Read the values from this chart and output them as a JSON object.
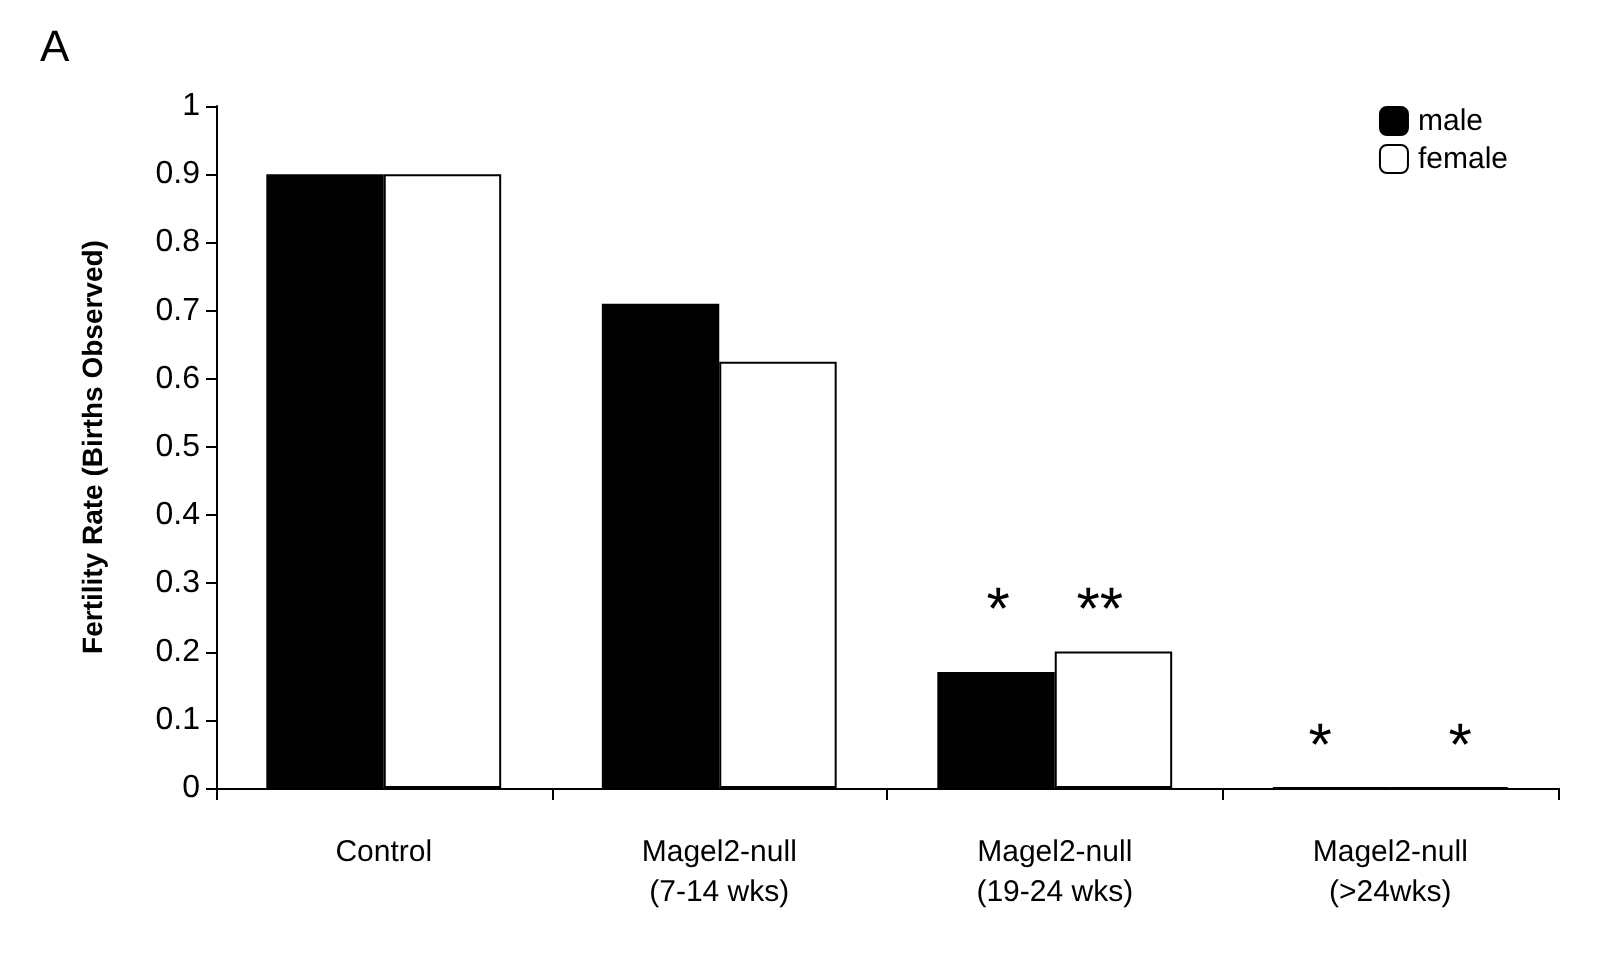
{
  "chart_data": {
    "type": "bar",
    "ylabel": "Fertility Rate (Births Observed)",
    "categories": [
      "Control",
      "Magel2-null\n(7-14 wks)",
      "Magel2-null\n(19-24 wks)",
      "Magel2-null\n(>24wks)"
    ],
    "series": [
      {
        "name": "male",
        "color": "#000000",
        "values": [
          0.9,
          0.71,
          0.17,
          0
        ]
      },
      {
        "name": "female",
        "color": "#ffffff",
        "values": [
          0.9,
          0.625,
          0.2,
          0
        ]
      }
    ],
    "ylim": [
      0,
      1
    ],
    "yticks": [
      0,
      0.1,
      0.2,
      0.3,
      0.4,
      0.5,
      0.6,
      0.7,
      0.8,
      0.9,
      1
    ],
    "grid": false,
    "legend": "top right",
    "annotations": [
      "A",
      {
        "text": "*    **",
        "x": "Magel2-null\n(19-24 wks)",
        "y": 0.2
      },
      {
        "text": "*       *",
        "x": "Magel2-null\n(>24wks)",
        "y": 0
      }
    ]
  }
}
